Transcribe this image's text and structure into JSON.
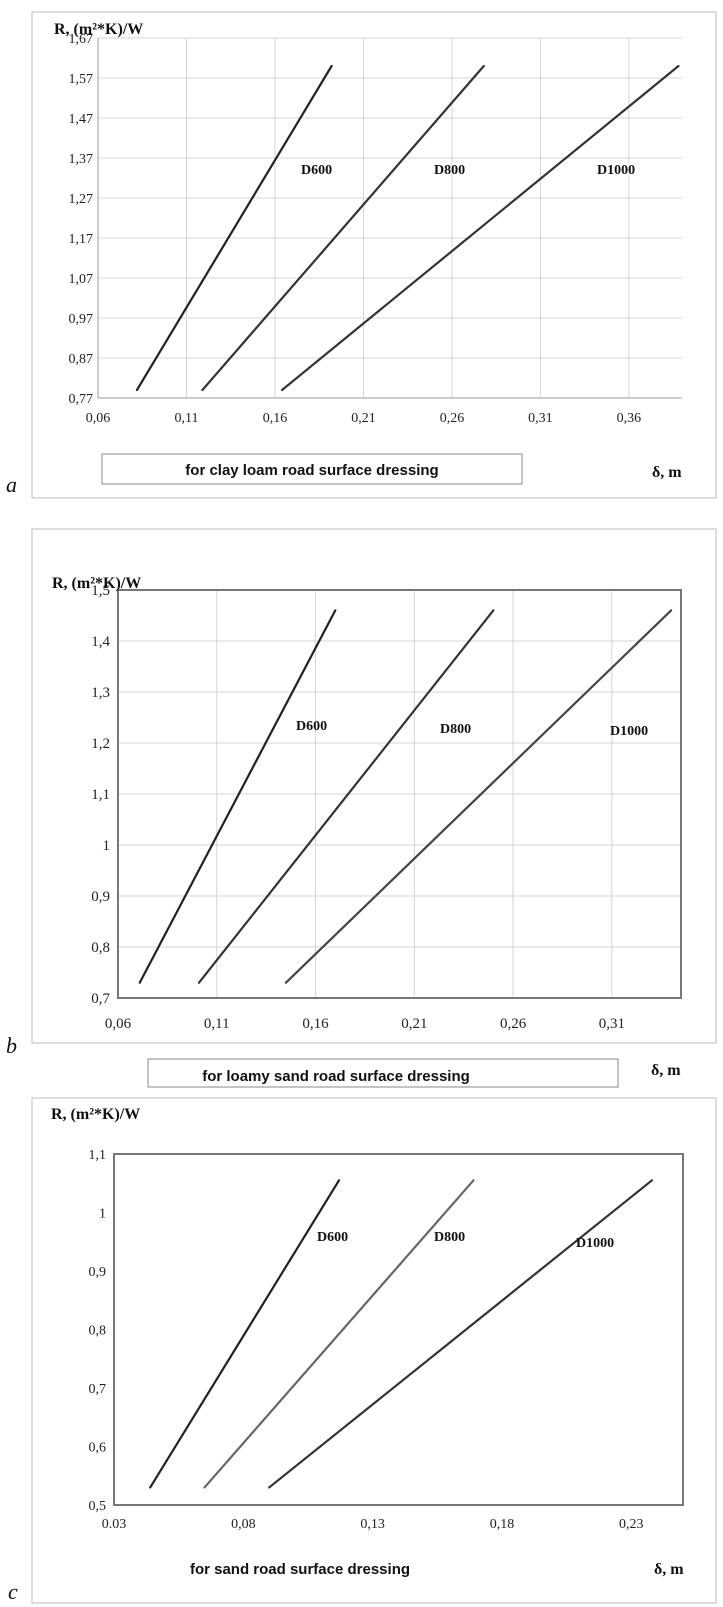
{
  "chart_data": [
    {
      "type": "line",
      "panel_letter": "a",
      "ylabel": "R, (m²*K)/W",
      "xlabel": "δ, m",
      "caption": "for clay loam road surface dressing",
      "xlim": [
        0.06,
        0.39
      ],
      "ylim": [
        0.77,
        1.67
      ],
      "xticks": [
        "0,06",
        "0,11",
        "0,16",
        "0,21",
        "0,26",
        "0,31",
        "0,36"
      ],
      "yticks": [
        "0,77",
        "0,87",
        "0,97",
        "1,07",
        "1,17",
        "1,27",
        "1,37",
        "1,47",
        "1,57",
        "1,67"
      ],
      "grid": true,
      "series": [
        {
          "name": "D600",
          "x": [
            0.082,
            0.192
          ],
          "y": [
            0.79,
            1.6
          ],
          "color": "#222222"
        },
        {
          "name": "D800",
          "x": [
            0.119,
            0.278
          ],
          "y": [
            0.79,
            1.6
          ],
          "color": "#333333"
        },
        {
          "name": "D1000",
          "x": [
            0.164,
            0.388
          ],
          "y": [
            0.79,
            1.6
          ],
          "color": "#333333"
        }
      ]
    },
    {
      "type": "line",
      "panel_letter": "b",
      "ylabel": "R, (m²*K)/W",
      "xlabel": "δ, m",
      "caption": "for loamy sand road surface dressing",
      "xlim": [
        0.06,
        0.345
      ],
      "ylim": [
        0.7,
        1.5
      ],
      "xticks": [
        "0,06",
        "0,11",
        "0,16",
        "0,21",
        "0,26",
        "0,31"
      ],
      "yticks": [
        "0,7",
        "0,8",
        "0,9",
        "1",
        "1,1",
        "1,2",
        "1,3",
        "1,4",
        "1,5"
      ],
      "grid": true,
      "series": [
        {
          "name": "D600",
          "x": [
            0.071,
            0.17
          ],
          "y": [
            0.73,
            1.46
          ],
          "color": "#222222"
        },
        {
          "name": "D800",
          "x": [
            0.101,
            0.25
          ],
          "y": [
            0.73,
            1.46
          ],
          "color": "#333333"
        },
        {
          "name": "D1000",
          "x": [
            0.145,
            0.34
          ],
          "y": [
            0.73,
            1.46
          ],
          "color": "#444444"
        }
      ]
    },
    {
      "type": "line",
      "panel_letter": "c",
      "ylabel": "R, (m²*K)/W",
      "xlabel": "δ, m",
      "caption": "for sand road surface dressing",
      "xlim": [
        0.03,
        0.25
      ],
      "ylim": [
        0.5,
        1.1
      ],
      "xticks": [
        "0.03",
        "0,08",
        "0,13",
        "0,18",
        "0,23"
      ],
      "yticks": [
        "0,5",
        "0,6",
        "0,7",
        "0,8",
        "0,9",
        "1",
        "1,1"
      ],
      "grid": false,
      "series": [
        {
          "name": "D600",
          "x": [
            0.044,
            0.117
          ],
          "y": [
            0.53,
            1.055
          ],
          "color": "#222222"
        },
        {
          "name": "D800",
          "x": [
            0.065,
            0.169
          ],
          "y": [
            0.53,
            1.055
          ],
          "color": "#666666"
        },
        {
          "name": "D1000",
          "x": [
            0.09,
            0.238
          ],
          "y": [
            0.53,
            1.055
          ],
          "color": "#333333"
        }
      ]
    }
  ]
}
